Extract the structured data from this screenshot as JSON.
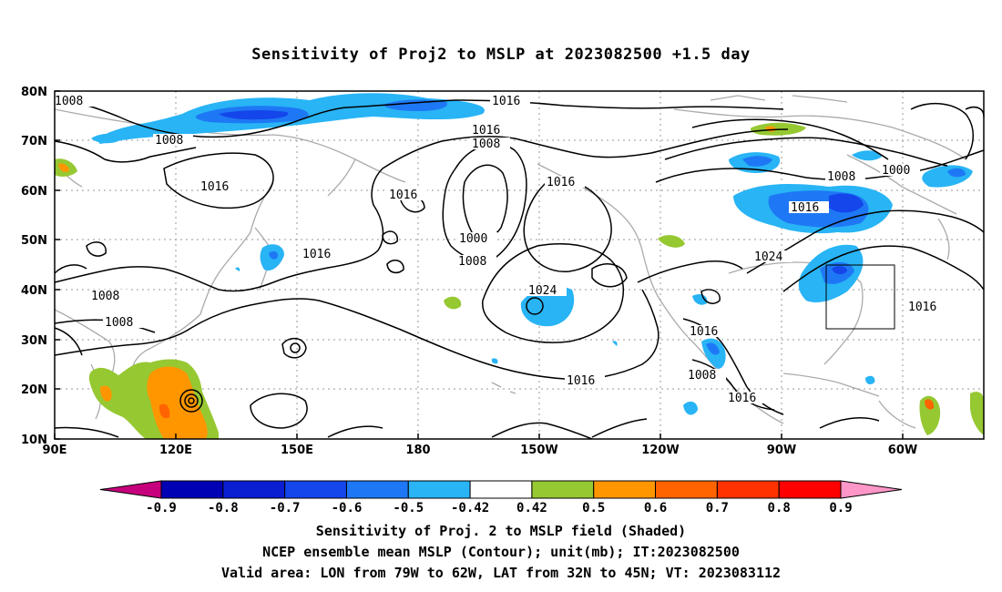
{
  "title": "Sensitivity of Proj2 to MSLP at 2023082500 +1.5 day",
  "captions": [
    "Sensitivity of Proj. 2 to MSLP field (Shaded)",
    "NCEP ensemble mean MSLP (Contour); unit(mb); IT:2023082500",
    "Valid area: LON from 79W to 62W, LAT from 32N to 45N; VT: 2023083112"
  ],
  "lat_labels": [
    "80N",
    "70N",
    "60N",
    "50N",
    "40N",
    "30N",
    "20N",
    "10N"
  ],
  "lon_labels": [
    "90E",
    "120E",
    "150E",
    "180",
    "150W",
    "120W",
    "90W",
    "60W"
  ],
  "contour_labels": [
    "1008",
    "1016",
    "1016",
    "1008",
    "1008",
    "1016",
    "1016",
    "1016",
    "1000",
    "1008",
    "1024",
    "1016",
    "1008",
    "1008",
    "1016",
    "1008",
    "1016",
    "1016",
    "1008",
    "1000",
    "1016",
    "1024",
    "1016"
  ],
  "colorbar": {
    "labels": [
      "-0.9",
      "-0.8",
      "-0.7",
      "-0.6",
      "-0.5",
      "-0.42",
      "0.42",
      "0.5",
      "0.6",
      "0.7",
      "0.8",
      "0.9"
    ],
    "colors": [
      "#c6007d",
      "#0000b4",
      "#0a1ed2",
      "#1446eb",
      "#1e78f5",
      "#28b4f5",
      "#ffffff",
      "#96c832",
      "#ff9600",
      "#ff6400",
      "#ff3200",
      "#ff0000",
      "#ff96c8"
    ]
  },
  "valid_box": {
    "lon_range": [
      "79W",
      "62W"
    ],
    "lat_range": [
      "32N",
      "45N"
    ]
  }
}
